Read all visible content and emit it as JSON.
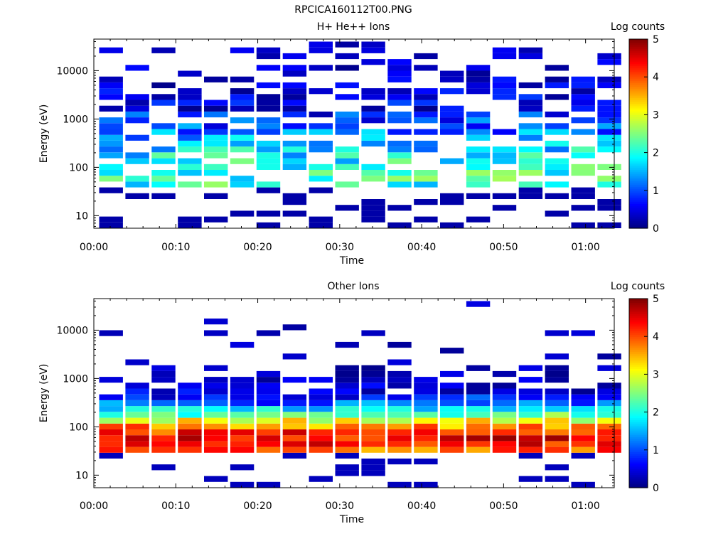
{
  "figure_title": "RPCICA160112T00.PNG",
  "colors": {
    "colormap": [
      "#00007f",
      "#0000ff",
      "#007fff",
      "#00ffff",
      "#7fff7f",
      "#ffff00",
      "#ff7f00",
      "#ff0000",
      "#7f0000"
    ]
  },
  "chart_data": [
    {
      "type": "heatmap",
      "title": "H+ He++ Ions",
      "xlabel": "Time",
      "ylabel": "Energy (eV)",
      "colorbar_label": "Log counts",
      "colorbar_range": [
        0,
        5
      ],
      "colorbar_ticks": [
        "0",
        "1",
        "2",
        "3",
        "4",
        "5"
      ],
      "x_ticks": [
        "00:00",
        "00:10",
        "00:20",
        "00:30",
        "00:40",
        "00:50",
        "01:00"
      ],
      "x_range_minutes": [
        0,
        63.5
      ],
      "y_scale": "log",
      "y_range": [
        5.5,
        45000
      ],
      "y_ticks": [
        "10",
        "100",
        "1000",
        "10000"
      ],
      "time_bins_minutes": [
        2.1,
        5.3,
        8.5,
        11.7,
        14.9,
        18.1,
        21.3,
        24.5,
        27.7,
        30.9,
        34.1,
        37.3,
        40.5,
        43.7,
        46.9,
        50.1,
        53.3,
        56.5,
        59.7,
        62.9
      ],
      "overall_level": 1.1,
      "peak_energy_eV": 60,
      "peak_level": 2.1
    },
    {
      "type": "heatmap",
      "title": "Other Ions",
      "xlabel": "Time",
      "ylabel": "Energy (eV)",
      "colorbar_label": "Log counts",
      "colorbar_range": [
        0,
        5
      ],
      "colorbar_ticks": [
        "0",
        "1",
        "2",
        "3",
        "4",
        "5"
      ],
      "x_ticks": [
        "00:00",
        "00:10",
        "00:20",
        "00:30",
        "00:40",
        "00:50",
        "01:00"
      ],
      "x_range_minutes": [
        0,
        63.5
      ],
      "y_scale": "log",
      "y_range": [
        5.5,
        45000
      ],
      "y_ticks": [
        "10",
        "100",
        "1000",
        "10000"
      ],
      "time_bins_minutes": [
        2.1,
        5.3,
        8.5,
        11.7,
        14.9,
        18.1,
        21.3,
        24.5,
        27.7,
        30.9,
        34.1,
        37.3,
        40.5,
        43.7,
        46.9,
        50.1,
        53.3,
        56.5,
        59.7,
        62.9
      ],
      "overall_level": 2.3,
      "peak_energy_eV": 55,
      "peak_level": 4.4
    }
  ]
}
